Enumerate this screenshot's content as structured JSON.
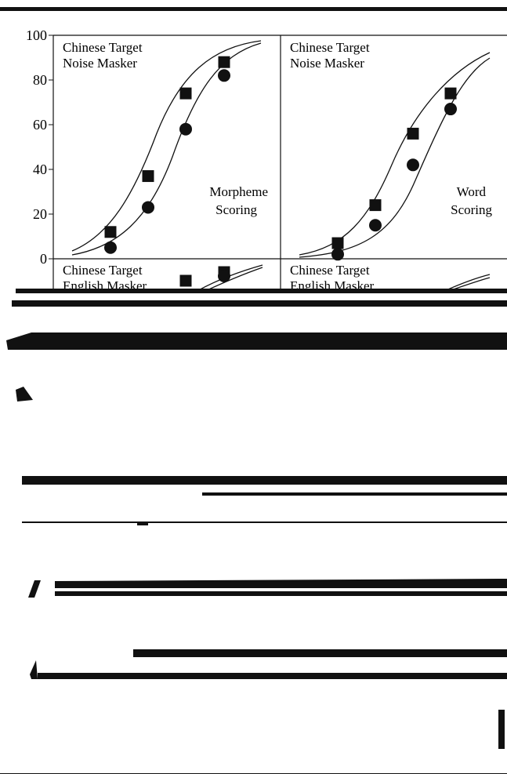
{
  "figure": {
    "background": "#ffffff",
    "ink": "#111111"
  },
  "chart_data": [
    {
      "type": "scatter",
      "panel": "top-left",
      "label_lines": [
        "Chinese Target",
        "Noise Masker"
      ],
      "scoring_lines": [
        "Morpheme",
        "Scoring"
      ],
      "y_ticks": [
        0,
        20,
        40,
        60,
        80,
        100
      ],
      "ylim": [
        0,
        100
      ],
      "xlim": [
        0,
        10
      ],
      "series": [
        {
          "marker": "square",
          "x": [
            1,
            2,
            3,
            4
          ],
          "y": [
            12,
            37,
            74,
            88
          ]
        },
        {
          "marker": "circle",
          "x": [
            1,
            2,
            3,
            4
          ],
          "y": [
            5,
            23,
            58,
            82
          ]
        }
      ]
    },
    {
      "type": "scatter",
      "panel": "top-right",
      "label_lines": [
        "Chinese Target",
        "Noise Masker"
      ],
      "scoring_lines": [
        "Word",
        "Scoring"
      ],
      "ylim": [
        0,
        100
      ],
      "xlim": [
        0,
        10
      ],
      "series": [
        {
          "marker": "square",
          "x": [
            1,
            2,
            3,
            4
          ],
          "y": [
            7,
            24,
            56,
            74
          ]
        },
        {
          "marker": "circle",
          "x": [
            1,
            2,
            3,
            4
          ],
          "y": [
            2,
            15,
            42,
            67
          ]
        }
      ]
    },
    {
      "type": "scatter",
      "panel": "bottom-left",
      "label_lines": [
        "Chinese Target",
        "English Masker"
      ],
      "series": [
        {
          "marker": "square",
          "x": [
            3,
            4
          ],
          "y": [
            95,
            99
          ]
        },
        {
          "marker": "circle",
          "x": [
            4
          ],
          "y": [
            97
          ]
        }
      ]
    },
    {
      "type": "scatter",
      "panel": "bottom-right",
      "label_lines": [
        "Chinese Target",
        "English Masker"
      ],
      "series": []
    }
  ]
}
